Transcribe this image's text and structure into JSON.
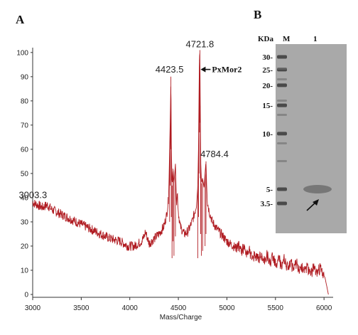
{
  "panels": {
    "a_label": "A",
    "b_label": "B"
  },
  "chart_data": [
    {
      "type": "line",
      "xlabel": "Mass/Charge",
      "ylabel": "",
      "xlim": [
        3000,
        6050
      ],
      "ylim": [
        0,
        102
      ],
      "xticks": [
        3000,
        3500,
        4000,
        4500,
        5000,
        5500,
        6000
      ],
      "yticks": [
        0,
        10,
        20,
        30,
        40,
        50,
        60,
        70,
        80,
        90,
        100
      ],
      "grid": false,
      "line_color": "#b01c22",
      "series": [
        {
          "x": [
            3000,
            3050,
            3100,
            3150,
            3200,
            3300,
            3400,
            3500,
            3600,
            3700,
            3800,
            3900,
            3980,
            4050,
            4120,
            4150,
            4160,
            4200,
            4250,
            4300,
            4350,
            4380,
            4400,
            4410,
            4418,
            4423.5,
            4428,
            4435,
            4445,
            4455,
            4470,
            4480,
            4490,
            4500,
            4520,
            4560,
            4600,
            4640,
            4670,
            4690,
            4700,
            4708,
            4712,
            4717,
            4721.8,
            4726,
            4730,
            4738,
            4750,
            4765,
            4775,
            4784.4,
            4792,
            4800,
            4820,
            4850,
            4900,
            5000,
            5100,
            5200,
            5300,
            5400,
            5500,
            5600,
            5700,
            5800,
            5900,
            5980,
            6010,
            6030,
            6045
          ],
          "y": [
            38,
            37,
            36,
            37,
            35,
            33,
            31,
            29,
            27,
            25,
            23,
            22,
            20,
            20,
            22,
            24,
            26,
            21,
            23,
            25,
            28,
            33,
            40,
            60,
            75,
            90,
            62,
            45,
            52,
            46,
            54,
            38,
            42,
            34,
            28,
            25,
            26,
            30,
            34,
            38,
            45,
            62,
            80,
            97,
            101,
            78,
            55,
            46,
            48,
            44,
            50,
            55,
            44,
            38,
            34,
            30,
            27,
            22,
            19,
            17,
            15,
            14,
            13,
            12,
            11,
            10,
            9,
            9,
            7,
            3,
            0
          ]
        }
      ],
      "peak_labels": [
        {
          "text": "3003.3",
          "x": 3003.3,
          "y": 38
        },
        {
          "text": "4423.5",
          "x": 4423.5,
          "y": 90
        },
        {
          "text": "4721.8",
          "x": 4721.8,
          "y": 101
        },
        {
          "text": "4784.4",
          "x": 4784.4,
          "y": 55
        }
      ],
      "annotation": {
        "text": "PxMor2"
      }
    },
    {
      "type": "gel",
      "unit_label": "KDa",
      "lanes": [
        "M",
        "1"
      ],
      "markers": [
        {
          "label": "30-",
          "kda": 30
        },
        {
          "label": "25-",
          "kda": 25
        },
        {
          "label": "20-",
          "kda": 20
        },
        {
          "label": "15-",
          "kda": 15
        },
        {
          "label": "10-",
          "kda": 10
        },
        {
          "label": "5-",
          "kda": 5
        },
        {
          "label": "3.5-",
          "kda": 3.5
        }
      ]
    }
  ]
}
